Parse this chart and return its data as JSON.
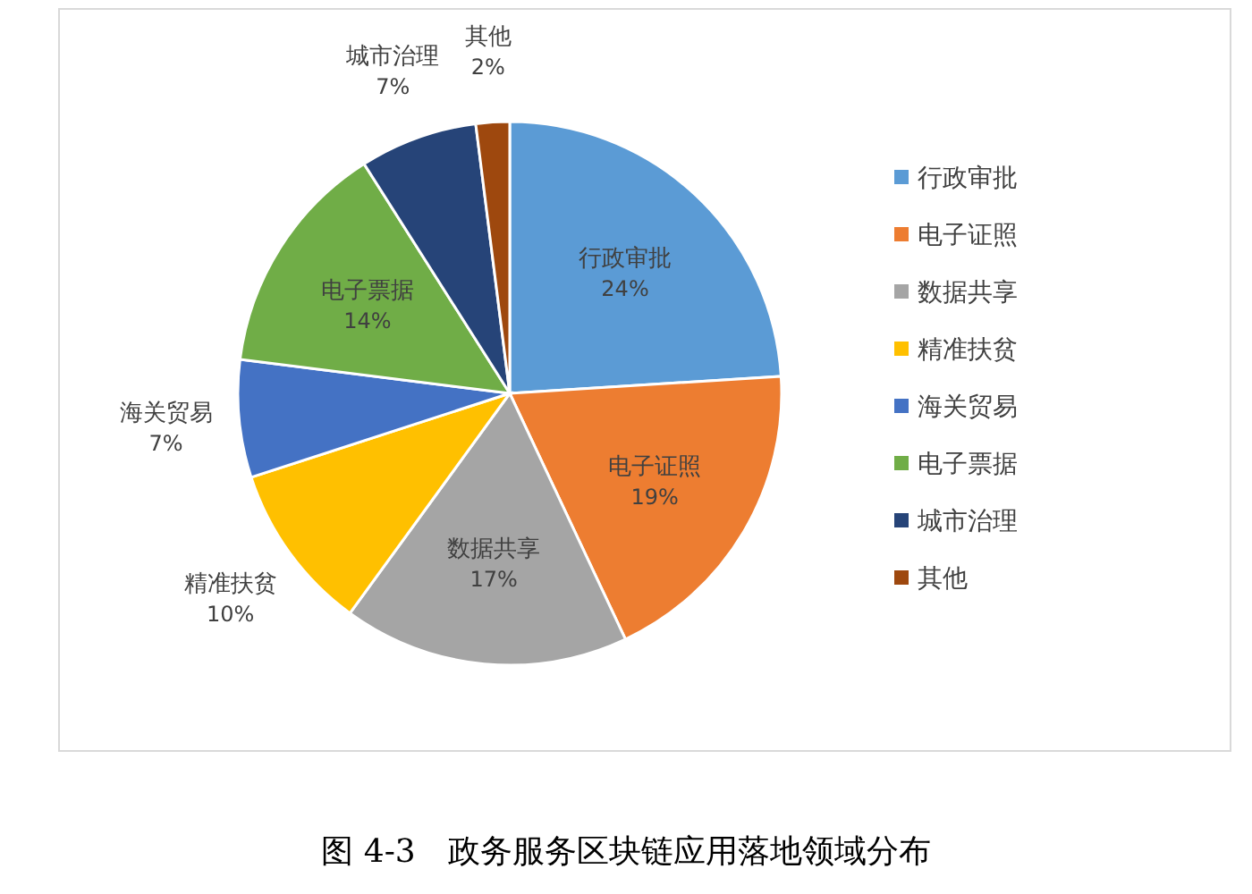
{
  "chart_data": {
    "type": "pie",
    "title": "图 4-3　政务服务区块链应用落地领域分布",
    "categories": [
      "行政审批",
      "电子证照",
      "数据共享",
      "精准扶贫",
      "海关贸易",
      "电子票据",
      "城市治理",
      "其他"
    ],
    "values": [
      24,
      19,
      17,
      10,
      7,
      14,
      7,
      2
    ],
    "colors": [
      "#5b9bd5",
      "#ed7d31",
      "#a5a5a5",
      "#ffc000",
      "#4472c4",
      "#70ad47",
      "#264478",
      "#9e480e"
    ],
    "value_labels": [
      "24%",
      "19%",
      "17%",
      "10%",
      "7%",
      "14%",
      "7%",
      "2%"
    ],
    "legend": "right"
  }
}
